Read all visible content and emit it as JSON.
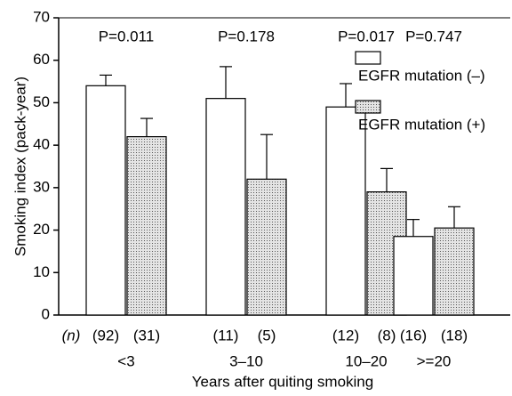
{
  "chart_data": {
    "type": "bar",
    "x_label": "Years after quiting smoking",
    "y_label": "Smoking index (pack-year)",
    "categories": [
      "<3",
      "3–10",
      "10–20",
      ">=20"
    ],
    "annotations": [
      "P=0.011",
      "P=0.178",
      "P=0.017",
      "P=0.747"
    ],
    "n_label": "(n)",
    "series": [
      {
        "name": "EGFR mutation (–)",
        "color": "#ffffff",
        "values": [
          54,
          51,
          49,
          18.5
        ],
        "errors": [
          2.5,
          7.5,
          5.5,
          4
        ],
        "n_labels": [
          "(92)",
          "(11)",
          "(12)",
          "(16)"
        ]
      },
      {
        "name": "EGFR mutation (+)",
        "color": "#c8c8c8",
        "values": [
          42,
          32,
          29,
          20.5
        ],
        "errors": [
          4.3,
          10.5,
          5.5,
          5
        ],
        "n_labels": [
          "(31)",
          "(5)",
          "(8)",
          "(18)"
        ]
      }
    ],
    "ylim": [
      0,
      70
    ],
    "yticks": [
      0,
      10,
      20,
      30,
      40,
      50,
      60,
      70
    ]
  }
}
